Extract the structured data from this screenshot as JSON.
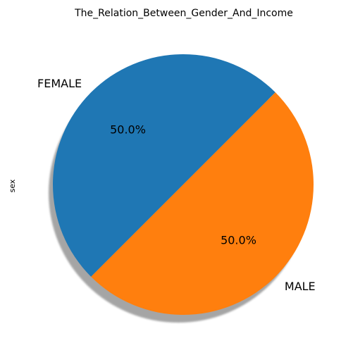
{
  "chart_data": {
    "type": "pie",
    "title": "The_Relation_Between_Gender_And_Income",
    "ylabel": "sex",
    "slices": [
      {
        "label": "FEMALE",
        "value": 50.0,
        "percent_label": "50.0%",
        "color": "#1f77b4"
      },
      {
        "label": "MALE",
        "value": 50.0,
        "percent_label": "50.0%",
        "color": "#ff7f0e"
      }
    ],
    "shadow": true,
    "start_angle_deg": 45
  }
}
